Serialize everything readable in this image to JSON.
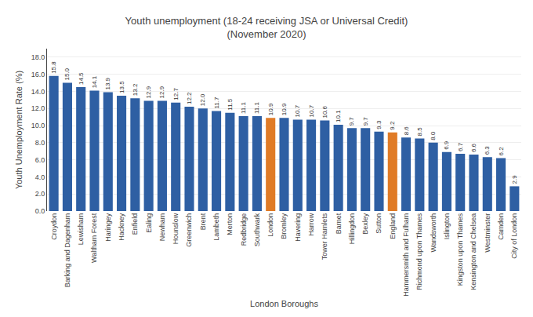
{
  "chart_data": {
    "type": "bar",
    "title": "Youth unemployment (18-24 receiving JSA or Universal Credit)\n(November 2020)",
    "xlabel": "London Boroughs",
    "ylabel": "Youth Unemployment Rate (%)",
    "categories": [
      "Croydon",
      "Barking and Dagenham",
      "Lewisham",
      "Waltham Forest",
      "Haringey",
      "Hackney",
      "Enfield",
      "Ealing",
      "Newham",
      "Hounslow",
      "Greenwich",
      "Brent",
      "Lambeth",
      "Merton",
      "Redbridge",
      "Southwark",
      "London",
      "Bromley",
      "Havering",
      "Harrow",
      "Tower Hamlets",
      "Barnet",
      "Hillingdon",
      "Bexley",
      "Sutton",
      "England",
      "Hammersmith and Fulham",
      "Richmond upon Thames",
      "Wandsworth",
      "Islington",
      "Kingston upon Thames",
      "Kensington and Chelsea",
      "Westminster",
      "Camden",
      "City of London"
    ],
    "values": [
      15.8,
      15.0,
      14.5,
      14.1,
      13.9,
      13.5,
      13.2,
      12.9,
      12.9,
      12.7,
      12.2,
      12.0,
      11.7,
      11.5,
      11.1,
      11.1,
      10.9,
      10.9,
      10.7,
      10.7,
      10.6,
      10.1,
      9.7,
      9.7,
      9.3,
      9.2,
      8.6,
      8.5,
      8.0,
      6.9,
      6.7,
      6.6,
      6.3,
      6.2,
      2.9
    ],
    "value_labels": [
      "15.8",
      "15.0",
      "14.5",
      "14.1",
      "13.9",
      "13.5",
      "13.2",
      "12.9",
      "12.9",
      "12.7",
      "12.2",
      "12.0",
      "11.7",
      "11.5",
      "11.1",
      "11.1",
      "10.9",
      "10.9",
      "10.7",
      "10.7",
      "10.6",
      "10.1",
      "9.7",
      "9.7",
      "9.3",
      "9.2",
      "8.6",
      "8.5",
      "8.0",
      "6.9",
      "6.7",
      "6.6",
      "6.3",
      "6.2",
      "2.9"
    ],
    "colors": [
      "#2e5fa3",
      "#2e5fa3",
      "#2e5fa3",
      "#2e5fa3",
      "#2e5fa3",
      "#2e5fa3",
      "#2e5fa3",
      "#2e5fa3",
      "#2e5fa3",
      "#2e5fa3",
      "#2e5fa3",
      "#2e5fa3",
      "#2e5fa3",
      "#2e5fa3",
      "#2e5fa3",
      "#2e5fa3",
      "#e07b26",
      "#2e5fa3",
      "#2e5fa3",
      "#2e5fa3",
      "#2e5fa3",
      "#2e5fa3",
      "#2e5fa3",
      "#2e5fa3",
      "#2e5fa3",
      "#e07b26",
      "#2e5fa3",
      "#2e5fa3",
      "#2e5fa3",
      "#2e5fa3",
      "#2e5fa3",
      "#2e5fa3",
      "#2e5fa3",
      "#2e5fa3",
      "#2e5fa3"
    ],
    "ylim": [
      0,
      19.0
    ],
    "yticks": [
      {
        "value": 0,
        "label": "0.0"
      },
      {
        "value": 2,
        "label": "2.0"
      },
      {
        "value": 4,
        "label": "4.0"
      },
      {
        "value": 6,
        "label": "6.0"
      },
      {
        "value": 8,
        "label": "8.0"
      },
      {
        "value": 10,
        "label": "10.0"
      },
      {
        "value": 12,
        "label": "12.0"
      },
      {
        "value": 14,
        "label": "14.0"
      },
      {
        "value": 16,
        "label": "16.0"
      },
      {
        "value": 18,
        "label": "18.0"
      }
    ],
    "grid": true,
    "data_labels": true
  }
}
